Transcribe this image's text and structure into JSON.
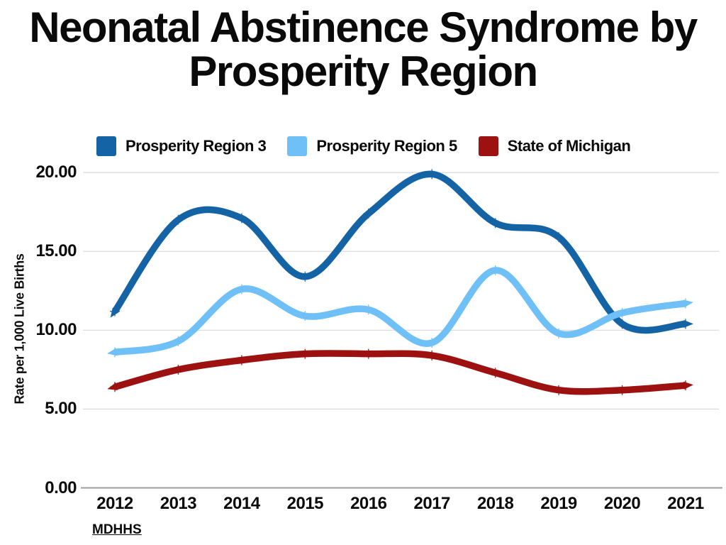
{
  "title": {
    "line1": "Neonatal Abstinence Syndrome by",
    "line2": "Prosperity Region"
  },
  "legend": [
    {
      "label": "Prosperity Region 3",
      "color": "#1464A5"
    },
    {
      "label": "Prosperity Region 5",
      "color": "#6FC0F7"
    },
    {
      "label": "State of Michigan",
      "color": "#9E1111"
    }
  ],
  "y_axis": {
    "title": "Rate per 1,000 Live Births",
    "ticks": [
      "20.00",
      "15.00",
      "10.00",
      "5.00",
      "0.00"
    ],
    "tick_values": [
      20,
      15,
      10,
      5,
      0
    ]
  },
  "x_axis": {
    "ticks": [
      "2012",
      "2013",
      "2014",
      "2015",
      "2016",
      "2017",
      "2018",
      "2019",
      "2020",
      "2021"
    ]
  },
  "source": {
    "label": "MDHHS"
  },
  "colors": {
    "gridline": "#D9D9D9",
    "axis_line": "#9C9C9C",
    "text": "#0b0b0b"
  },
  "chart_data": {
    "type": "line",
    "title": "Neonatal Abstinence Syndrome by Prosperity Region",
    "x": [
      2012,
      2013,
      2014,
      2015,
      2016,
      2017,
      2018,
      2019,
      2020,
      2021
    ],
    "series": [
      {
        "name": "Prosperity Region 3",
        "color": "#1464A5",
        "values": [
          11.2,
          17.0,
          17.1,
          13.4,
          17.4,
          19.9,
          16.8,
          15.9,
          10.4,
          10.4
        ]
      },
      {
        "name": "Prosperity Region 5",
        "color": "#6FC0F7",
        "values": [
          8.6,
          9.3,
          12.6,
          10.9,
          11.3,
          9.2,
          13.8,
          9.8,
          11.1,
          11.7
        ]
      },
      {
        "name": "State of Michigan",
        "color": "#9E1111",
        "values": [
          6.4,
          7.5,
          8.1,
          8.5,
          8.5,
          8.4,
          7.3,
          6.2,
          6.2,
          6.5
        ]
      }
    ],
    "xlabel": "",
    "ylabel": "Rate per 1,000 Live Births",
    "ylim": [
      0,
      20
    ],
    "y_tick_step": 5,
    "grid": true,
    "smooth": true,
    "line_end_arrows": true,
    "legend_position": "top",
    "source": "MDHHS"
  }
}
